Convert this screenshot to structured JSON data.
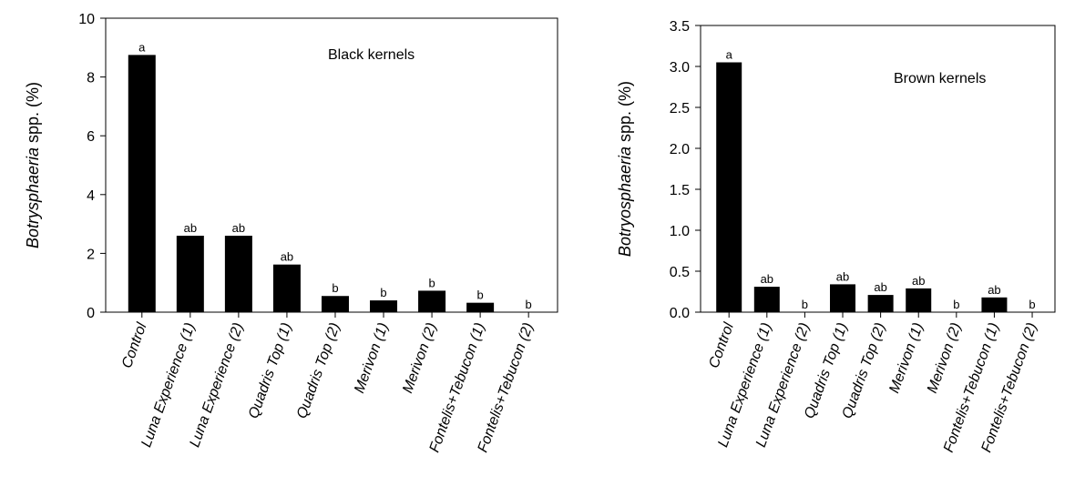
{
  "chart_data": [
    {
      "type": "bar",
      "annotation": "Black kernels",
      "ylabel_italic": "Botrysphaeria",
      "ylabel_rest": " spp. (%)",
      "ylim": [
        0,
        10
      ],
      "yticks": [
        0,
        2,
        4,
        6,
        8,
        10
      ],
      "categories": [
        "Control",
        "Luna Experience (1)",
        "Luna Experience (2)",
        "Quadris Top (1)",
        "Quadris Top (2)",
        "Merivon (1)",
        "Merivon (2)",
        "Fontelis+Tebucon (1)",
        "Fontelis+Tebucon (2)"
      ],
      "values": [
        8.75,
        2.6,
        2.6,
        1.62,
        0.55,
        0.4,
        0.73,
        0.32,
        0.0
      ],
      "letters": [
        "a",
        "ab",
        "ab",
        "ab",
        "b",
        "b",
        "b",
        "b",
        "b"
      ],
      "grid": false,
      "bar_color": "#000000"
    },
    {
      "type": "bar",
      "annotation": "Brown kernels",
      "ylabel_italic": "Botryosphaeria",
      "ylabel_rest": " spp. (%)",
      "ylim": [
        0,
        3.5
      ],
      "yticks": [
        "0.0",
        "0.5",
        "1.0",
        "1.5",
        "2.0",
        "2.5",
        "3.0",
        "3.5"
      ],
      "categories": [
        "Control",
        "Luna Experience (1)",
        "Luna Experience (2)",
        "Quadris Top (1)",
        "Quadris Top (2)",
        "Merivon (1)",
        "Merivon (2)",
        "Fontelis+Tebucon (1)",
        "Fontelis+Tebucon (2)"
      ],
      "values": [
        3.05,
        0.31,
        0.0,
        0.34,
        0.21,
        0.29,
        0.0,
        0.18,
        0.0
      ],
      "letters": [
        "a",
        "ab",
        "b",
        "ab",
        "ab",
        "ab",
        "b",
        "ab",
        "b"
      ],
      "grid": false,
      "bar_color": "#000000"
    }
  ]
}
